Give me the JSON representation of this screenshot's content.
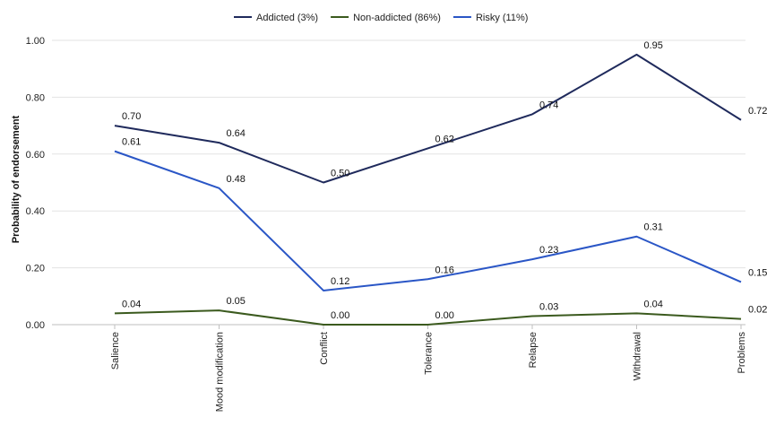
{
  "chart_data": {
    "type": "line",
    "categories": [
      "Salience",
      "Mood modification",
      "Conflict",
      "Tolerance",
      "Relapse",
      "Withdrawal",
      "Problems"
    ],
    "ylabel": "Probability of endorsement",
    "xlabel": "",
    "ylim": [
      0,
      1
    ],
    "yticks": [
      "0.00",
      "0.20",
      "0.40",
      "0.60",
      "0.80",
      "1.00"
    ],
    "grid": true,
    "legend_position": "top",
    "series": [
      {
        "name": "Addicted (3%)",
        "color": "#1f2a5c",
        "values": [
          0.7,
          0.64,
          0.5,
          0.62,
          0.74,
          0.95,
          0.72
        ],
        "labels": [
          "0.70",
          "0.64",
          "0.50",
          "0.62",
          "0.74",
          "0.95",
          "0.72"
        ]
      },
      {
        "name": "Non-addicted (86%)",
        "color": "#3b5a1e",
        "values": [
          0.04,
          0.05,
          0.0,
          0.0,
          0.03,
          0.04,
          0.02
        ],
        "labels": [
          "0.04",
          "0.05",
          "0.00",
          "0.00",
          "0.03",
          "0.04",
          "0.02"
        ]
      },
      {
        "name": "Risky (11%)",
        "color": "#2a56c6",
        "values": [
          0.61,
          0.48,
          0.12,
          0.16,
          0.23,
          0.31,
          0.15
        ],
        "labels": [
          "0.61",
          "0.48",
          "0.12",
          "0.16",
          "0.23",
          "0.31",
          "0.15"
        ]
      }
    ]
  }
}
